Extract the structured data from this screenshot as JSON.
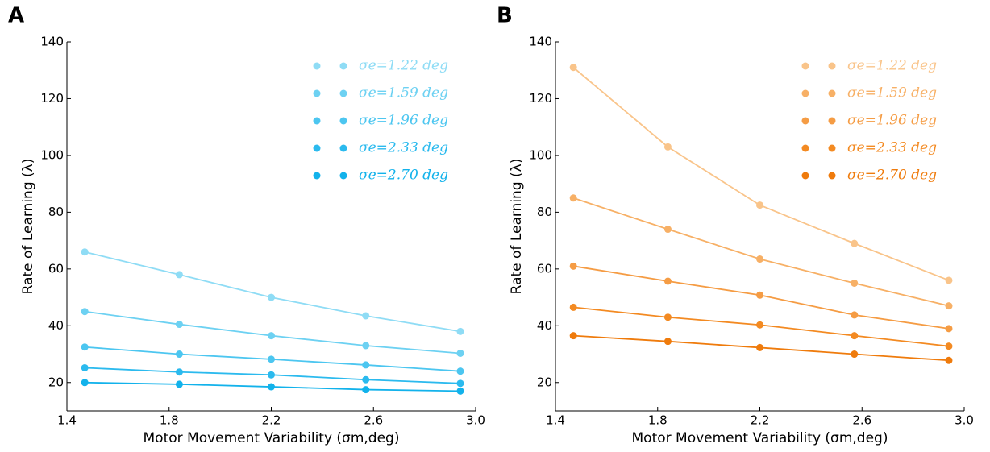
{
  "chart_data": [
    {
      "type": "line",
      "label": "A",
      "x_label": "Motor Movement Variability (σm,deg)",
      "y_label": "Rate of Learning (λ)",
      "x": [
        1.47,
        1.84,
        2.2,
        2.57,
        2.94
      ],
      "xlim": [
        1.4,
        3.0
      ],
      "xticks": [
        1.4,
        1.8,
        2.2,
        2.6,
        {
          "value": 3,
          "label": "3.0"
        }
      ],
      "ylim": [
        10,
        140
      ],
      "yticks": [
        20,
        40,
        60,
        80,
        100,
        120,
        140
      ],
      "legend": "upper right",
      "series": [
        {
          "name": "σe=1.22 deg",
          "color": "#8fdcf5",
          "values": [
            66,
            58,
            50,
            43.5,
            38
          ]
        },
        {
          "name": "σe=1.59 deg",
          "color": "#6dd1f2",
          "values": [
            45,
            40.5,
            36.5,
            33,
            30.3
          ]
        },
        {
          "name": "σe=1.96 deg",
          "color": "#4cc6f0",
          "values": [
            32.5,
            30,
            28.2,
            26.2,
            24
          ]
        },
        {
          "name": "σe=2.33 deg",
          "color": "#2bbaee",
          "values": [
            25.2,
            23.7,
            22.7,
            21,
            19.7
          ]
        },
        {
          "name": "σe=2.70 deg",
          "color": "#12b2eb",
          "values": [
            20,
            19.4,
            18.5,
            17.5,
            17
          ]
        }
      ]
    },
    {
      "type": "line",
      "label": "B",
      "x_label": "Motor Movement Variability (σm,deg)",
      "y_label": "Rate of Learning (λ)",
      "x": [
        1.47,
        1.84,
        2.2,
        2.57,
        2.94
      ],
      "xlim": [
        1.4,
        3.0
      ],
      "xticks": [
        1.4,
        1.8,
        2.2,
        2.6,
        {
          "value": 3,
          "label": "3.0"
        }
      ],
      "ylim": [
        10,
        140
      ],
      "yticks": [
        20,
        40,
        60,
        80,
        100,
        120,
        140
      ],
      "legend": "upper right",
      "series": [
        {
          "name": "σe=1.22 deg",
          "color": "#f9c48a",
          "values": [
            131,
            103,
            82.5,
            69,
            56
          ]
        },
        {
          "name": "σe=1.59 deg",
          "color": "#f7b066",
          "values": [
            85,
            74,
            63.5,
            55,
            47
          ]
        },
        {
          "name": "σe=1.96 deg",
          "color": "#f59c44",
          "values": [
            61,
            55.7,
            50.8,
            43.8,
            39
          ]
        },
        {
          "name": "σe=2.33 deg",
          "color": "#f38a22",
          "values": [
            46.5,
            43,
            40.3,
            36.5,
            32.8
          ]
        },
        {
          "name": "σe=2.70 deg",
          "color": "#ef7b0c",
          "values": [
            36.5,
            34.5,
            32.3,
            30,
            27.8
          ]
        }
      ]
    }
  ]
}
